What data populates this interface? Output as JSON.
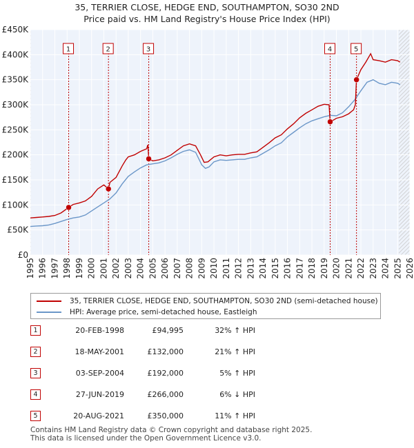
{
  "header": {
    "title": "35, TERRIER CLOSE, HEDGE END, SOUTHAMPTON, SO30 2ND",
    "subtitle": "Price paid vs. HM Land Registry's House Price Index (HPI)"
  },
  "chart_data": {
    "type": "line",
    "title": "35, TERRIER CLOSE, HEDGE END, SOUTHAMPTON, SO30 2ND",
    "subtitle": "Price paid vs. HM Land Registry's House Price Index (HPI)",
    "xlabel": "",
    "ylabel": "",
    "xlim": [
      1995,
      2026
    ],
    "ylim": [
      0,
      450000
    ],
    "grid": true,
    "y_ticks": [
      0,
      50000,
      100000,
      150000,
      200000,
      250000,
      300000,
      350000,
      400000,
      450000
    ],
    "y_tick_labels": [
      "£0",
      "£50K",
      "£100K",
      "£150K",
      "£200K",
      "£250K",
      "£300K",
      "£350K",
      "£400K",
      "£450K"
    ],
    "x_ticks": [
      1995,
      1996,
      1997,
      1998,
      1999,
      2000,
      2001,
      2002,
      2003,
      2004,
      2005,
      2006,
      2007,
      2008,
      2009,
      2010,
      2011,
      2012,
      2013,
      2014,
      2015,
      2016,
      2017,
      2018,
      2019,
      2020,
      2021,
      2022,
      2023,
      2024,
      2025,
      2026
    ],
    "x_tick_labels": [
      "1995",
      "1996",
      "1997",
      "1998",
      "1999",
      "2000",
      "2001",
      "2002",
      "2003",
      "2004",
      "2005",
      "2006",
      "2007",
      "2008",
      "2009",
      "2010",
      "2011",
      "2012",
      "2013",
      "2014",
      "2015",
      "2016",
      "2017",
      "2018",
      "2019",
      "2020",
      "2021",
      "2022",
      "2023",
      "2024",
      "2025",
      "2026"
    ],
    "series": [
      {
        "name": "35, TERRIER CLOSE, HEDGE END, SOUTHAMPTON, SO30 2ND (semi-detached house)",
        "color": "#c00000",
        "points": [
          [
            1995.0,
            74000
          ],
          [
            1995.5,
            75000
          ],
          [
            1996.0,
            76000
          ],
          [
            1996.5,
            77000
          ],
          [
            1997.0,
            79000
          ],
          [
            1997.5,
            84000
          ],
          [
            1998.13,
            94995
          ],
          [
            1998.5,
            101000
          ],
          [
            1999.0,
            104000
          ],
          [
            1999.5,
            108000
          ],
          [
            2000.0,
            117000
          ],
          [
            2000.5,
            132000
          ],
          [
            2001.0,
            140000
          ],
          [
            2001.38,
            132000
          ],
          [
            2001.5,
            145000
          ],
          [
            2002.0,
            155000
          ],
          [
            2002.5,
            178000
          ],
          [
            2002.8,
            190000
          ],
          [
            2003.0,
            196000
          ],
          [
            2003.5,
            200000
          ],
          [
            2004.0,
            207000
          ],
          [
            2004.5,
            212000
          ],
          [
            2004.6,
            220000
          ],
          [
            2004.67,
            192000
          ],
          [
            2005.0,
            188000
          ],
          [
            2005.5,
            190000
          ],
          [
            2006.0,
            194000
          ],
          [
            2006.5,
            200000
          ],
          [
            2007.0,
            209000
          ],
          [
            2007.5,
            218000
          ],
          [
            2008.0,
            222000
          ],
          [
            2008.5,
            218000
          ],
          [
            2008.9,
            200000
          ],
          [
            2009.2,
            185000
          ],
          [
            2009.5,
            186000
          ],
          [
            2010.0,
            196000
          ],
          [
            2010.5,
            200000
          ],
          [
            2011.0,
            198000
          ],
          [
            2011.5,
            200000
          ],
          [
            2012.0,
            201000
          ],
          [
            2012.5,
            201000
          ],
          [
            2013.0,
            204000
          ],
          [
            2013.5,
            206000
          ],
          [
            2014.0,
            215000
          ],
          [
            2014.5,
            224000
          ],
          [
            2015.0,
            234000
          ],
          [
            2015.5,
            240000
          ],
          [
            2016.0,
            252000
          ],
          [
            2016.5,
            262000
          ],
          [
            2017.0,
            274000
          ],
          [
            2017.5,
            283000
          ],
          [
            2018.0,
            290000
          ],
          [
            2018.5,
            297000
          ],
          [
            2019.0,
            301000
          ],
          [
            2019.4,
            300000
          ],
          [
            2019.49,
            266000
          ],
          [
            2019.8,
            270000
          ],
          [
            2020.0,
            273000
          ],
          [
            2020.5,
            276000
          ],
          [
            2021.0,
            282000
          ],
          [
            2021.4,
            290000
          ],
          [
            2021.55,
            300000
          ],
          [
            2021.64,
            350000
          ],
          [
            2022.0,
            370000
          ],
          [
            2022.4,
            385000
          ],
          [
            2022.8,
            402000
          ],
          [
            2023.0,
            390000
          ],
          [
            2023.5,
            388000
          ],
          [
            2024.0,
            385000
          ],
          [
            2024.5,
            390000
          ],
          [
            2025.0,
            388000
          ],
          [
            2025.2,
            385000
          ]
        ]
      },
      {
        "name": "HPI: Average price, semi-detached house, Eastleigh",
        "color": "#6a96c8",
        "points": [
          [
            1995.0,
            57000
          ],
          [
            1995.5,
            58000
          ],
          [
            1996.0,
            58500
          ],
          [
            1996.5,
            60000
          ],
          [
            1997.0,
            63000
          ],
          [
            1997.5,
            67000
          ],
          [
            1998.0,
            71000
          ],
          [
            1998.5,
            74000
          ],
          [
            1999.0,
            76000
          ],
          [
            1999.5,
            80000
          ],
          [
            2000.0,
            88000
          ],
          [
            2000.5,
            96000
          ],
          [
            2001.0,
            104000
          ],
          [
            2001.5,
            112000
          ],
          [
            2002.0,
            124000
          ],
          [
            2002.5,
            142000
          ],
          [
            2003.0,
            157000
          ],
          [
            2003.5,
            166000
          ],
          [
            2004.0,
            174000
          ],
          [
            2004.5,
            180000
          ],
          [
            2005.0,
            182000
          ],
          [
            2005.5,
            184000
          ],
          [
            2006.0,
            188000
          ],
          [
            2006.5,
            194000
          ],
          [
            2007.0,
            201000
          ],
          [
            2007.5,
            207000
          ],
          [
            2008.0,
            210000
          ],
          [
            2008.5,
            205000
          ],
          [
            2009.0,
            180000
          ],
          [
            2009.3,
            173000
          ],
          [
            2009.6,
            176000
          ],
          [
            2010.0,
            186000
          ],
          [
            2010.5,
            190000
          ],
          [
            2011.0,
            189000
          ],
          [
            2011.5,
            190000
          ],
          [
            2012.0,
            191000
          ],
          [
            2012.5,
            191000
          ],
          [
            2013.0,
            194000
          ],
          [
            2013.5,
            196000
          ],
          [
            2014.0,
            203000
          ],
          [
            2014.5,
            210000
          ],
          [
            2015.0,
            218000
          ],
          [
            2015.5,
            224000
          ],
          [
            2016.0,
            236000
          ],
          [
            2016.5,
            245000
          ],
          [
            2017.0,
            254000
          ],
          [
            2017.5,
            262000
          ],
          [
            2018.0,
            268000
          ],
          [
            2018.5,
            272000
          ],
          [
            2019.0,
            276000
          ],
          [
            2019.5,
            279000
          ],
          [
            2020.0,
            278000
          ],
          [
            2020.5,
            284000
          ],
          [
            2021.0,
            296000
          ],
          [
            2021.5,
            310000
          ],
          [
            2022.0,
            328000
          ],
          [
            2022.5,
            345000
          ],
          [
            2023.0,
            350000
          ],
          [
            2023.5,
            343000
          ],
          [
            2024.0,
            340000
          ],
          [
            2024.5,
            345000
          ],
          [
            2025.0,
            343000
          ],
          [
            2025.2,
            340000
          ]
        ]
      }
    ],
    "markers": [
      {
        "label": "1",
        "x": 1998.13,
        "y": 94995
      },
      {
        "label": "2",
        "x": 2001.38,
        "y": 132000
      },
      {
        "label": "3",
        "x": 2004.67,
        "y": 192000
      },
      {
        "label": "4",
        "x": 2019.49,
        "y": 266000
      },
      {
        "label": "5",
        "x": 2021.64,
        "y": 350000
      }
    ],
    "hatched_ranges": [
      [
        1995.0,
        1995.05
      ],
      [
        2025.1,
        2026.0
      ]
    ]
  },
  "legend": {
    "items": [
      {
        "label": "35, TERRIER CLOSE, HEDGE END, SOUTHAMPTON, SO30 2ND (semi-detached house)",
        "color": "#c00000"
      },
      {
        "label": "HPI: Average price, semi-detached house, Eastleigh",
        "color": "#6a96c8"
      }
    ]
  },
  "sales": [
    {
      "num": "1",
      "date": "20-FEB-1998",
      "price": "£94,995",
      "hpi": "32% ↑ HPI"
    },
    {
      "num": "2",
      "date": "18-MAY-2001",
      "price": "£132,000",
      "hpi": "21% ↑ HPI"
    },
    {
      "num": "3",
      "date": "03-SEP-2004",
      "price": "£192,000",
      "hpi": "5% ↑ HPI"
    },
    {
      "num": "4",
      "date": "27-JUN-2019",
      "price": "£266,000",
      "hpi": "6% ↓ HPI"
    },
    {
      "num": "5",
      "date": "20-AUG-2021",
      "price": "£350,000",
      "hpi": "11% ↑ HPI"
    }
  ],
  "footer": {
    "line1": "Contains HM Land Registry data © Crown copyright and database right 2025.",
    "line2": "This data is licensed under the Open Government Licence v3.0."
  }
}
